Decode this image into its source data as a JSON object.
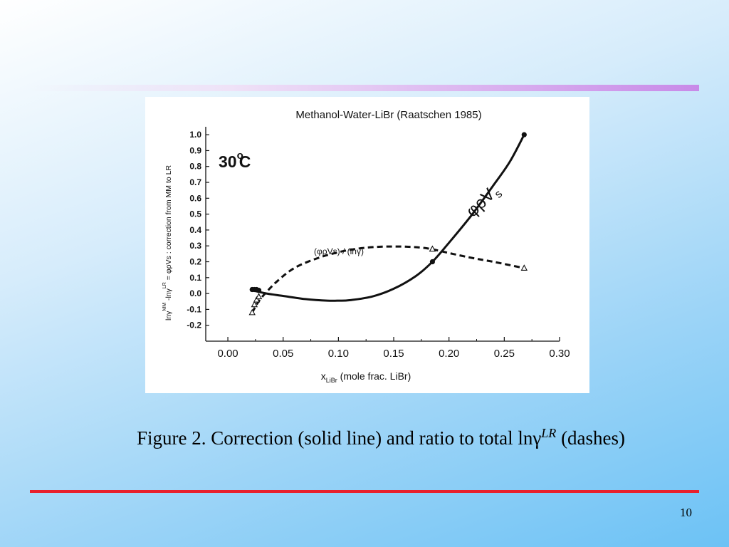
{
  "slide": {
    "caption_prefix": "Figure 2. Correction (solid line) and ratio to total lnγ",
    "caption_superscript": "LR",
    "caption_suffix": " (dashes)",
    "page_number": "10",
    "colors": {
      "bottom_rule": "#e8202c",
      "top_rule": "#c88ae8"
    }
  },
  "chart_data": {
    "type": "line",
    "title": "Methanol-Water-LiBr (Raatschen 1985)",
    "temperature_label": "30",
    "temperature_degree": "o",
    "temperature_unit": "C",
    "xlabel": "x",
    "xlabel_sub": "LiBr",
    "xlabel_rest": "  (mole frac. LiBr)",
    "ylabel_parts": {
      "a": "lnγ",
      "a_sup": "MM",
      "b": " -lnγ",
      "b_sup": "LR",
      "c": " = φρVs : correction from MM to LR"
    },
    "xlim": [
      -0.02,
      0.3
    ],
    "ylim": [
      -0.3,
      1.05
    ],
    "x_ticks": [
      "0.00",
      "0.05",
      "0.10",
      "0.15",
      "0.20",
      "0.25",
      "0.30"
    ],
    "x_tick_values": [
      0.0,
      0.05,
      0.1,
      0.15,
      0.2,
      0.25,
      0.3
    ],
    "y_ticks": [
      "-0.2",
      "-0.1",
      "0.0",
      "0.1",
      "0.2",
      "0.3",
      "0.4",
      "0.5",
      "0.6",
      "0.7",
      "0.8",
      "0.9",
      "1.0"
    ],
    "y_tick_values": [
      -0.2,
      -0.1,
      0.0,
      0.1,
      0.2,
      0.3,
      0.4,
      0.5,
      0.6,
      0.7,
      0.8,
      0.9,
      1.0
    ],
    "series": [
      {
        "name": "φρVs",
        "label_main": "φρV",
        "label_sub": "s",
        "style": "solid",
        "curve": {
          "x": [
            0.022,
            0.035,
            0.05,
            0.07,
            0.09,
            0.1,
            0.11,
            0.13,
            0.15,
            0.17,
            0.185,
            0.2,
            0.22,
            0.24,
            0.255,
            0.268
          ],
          "y": [
            0.02,
            0.0,
            -0.015,
            -0.035,
            -0.045,
            -0.045,
            -0.042,
            -0.02,
            0.03,
            0.11,
            0.2,
            0.32,
            0.49,
            0.68,
            0.83,
            1.0
          ]
        },
        "markers": {
          "x": [
            0.022,
            0.024,
            0.026,
            0.028,
            0.185,
            0.268
          ],
          "y": [
            0.025,
            0.025,
            0.025,
            0.02,
            0.2,
            1.0
          ]
        }
      },
      {
        "name": "(φρVs) / (lnγ)",
        "label_main": "(φρVs) / (lnγ)",
        "style": "dashed",
        "curve": {
          "x": [
            0.022,
            0.026,
            0.03,
            0.035,
            0.045,
            0.06,
            0.08,
            0.1,
            0.12,
            0.14,
            0.16,
            0.18,
            0.2,
            0.22,
            0.24,
            0.268
          ],
          "y": [
            -0.12,
            -0.07,
            -0.03,
            0.01,
            0.08,
            0.16,
            0.22,
            0.26,
            0.285,
            0.295,
            0.295,
            0.285,
            0.255,
            0.225,
            0.2,
            0.16
          ]
        },
        "markers": {
          "x": [
            0.022,
            0.024,
            0.026,
            0.028,
            0.185,
            0.268
          ],
          "y": [
            -0.12,
            -0.07,
            -0.04,
            -0.02,
            0.28,
            0.16
          ]
        }
      }
    ]
  }
}
